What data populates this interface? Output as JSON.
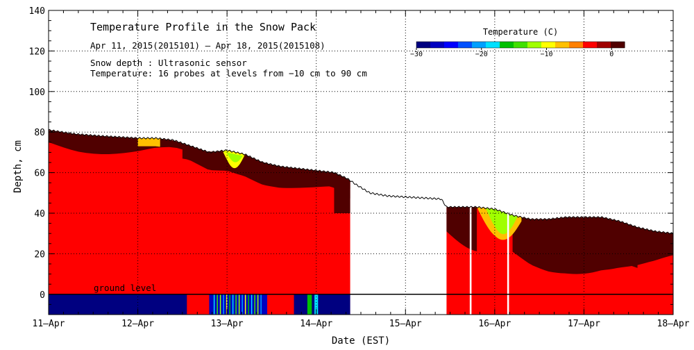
{
  "chart_data": {
    "type": "heatmap",
    "title": "Temperature Profile in the Snow Pack",
    "subtitle": "Apr 11, 2015(2015101) – Apr 18, 2015(2015108)",
    "annotations": [
      "Snow depth : Ultrasonic sensor",
      "Temperature: 16 probes at levels from −10 cm to 90 cm"
    ],
    "ground_label": "ground level",
    "xlabel": "Date (EST)",
    "ylabel": "Depth, cm",
    "x_ticks": [
      "11–Apr",
      "12–Apr",
      "13–Apr",
      "14–Apr",
      "15–Apr",
      "16–Apr",
      "17–Apr",
      "18–Apr"
    ],
    "xlim": [
      0,
      7
    ],
    "ylim": [
      -10,
      140
    ],
    "y_ticks": [
      140,
      120,
      100,
      80,
      60,
      40,
      20,
      0
    ],
    "grid": true,
    "colorbar": {
      "title": "Temperature (C)",
      "range": [
        -30,
        2
      ],
      "ticks": [
        -30,
        -20,
        -10,
        0
      ],
      "colors": [
        "#000080",
        "#0000c0",
        "#0000ff",
        "#0050ff",
        "#00a0ff",
        "#00e0ff",
        "#00c000",
        "#40e000",
        "#a0ff00",
        "#ffff00",
        "#ffc000",
        "#ff8000",
        "#ff0000",
        "#a00000",
        "#500000"
      ]
    },
    "snow_depth": {
      "x": [
        0,
        0.3,
        0.6,
        1.0,
        1.2,
        1.4,
        1.6,
        1.8,
        2.0,
        2.2,
        2.4,
        2.6,
        2.8,
        3.0,
        3.2,
        3.35,
        3.45,
        3.6,
        3.8,
        4.0,
        4.2,
        4.4,
        4.46,
        4.6,
        4.8,
        5.0,
        5.2,
        5.4,
        5.6,
        5.8,
        6.0,
        6.2,
        6.4,
        6.6,
        6.8,
        7.0
      ],
      "depth": [
        81,
        79,
        78,
        77,
        77,
        76,
        73,
        70,
        71,
        69,
        65,
        63,
        62,
        61,
        60,
        57,
        54,
        50,
        48.5,
        48,
        47.5,
        47,
        43,
        43,
        43,
        42,
        39,
        37,
        37,
        38,
        38,
        38,
        36,
        33,
        31,
        30
      ]
    },
    "temperature_regions": [
      {
        "label": "near 0 C",
        "x": [
          0,
          3.38
        ],
        "color": "#ff0000"
      },
      {
        "label": "near 0 C",
        "x": [
          4.46,
          7.0
        ],
        "color": "#ff0000"
      },
      {
        "label": "below -25 C at ground",
        "x": [
          0,
          1.55
        ],
        "color": "#000080"
      },
      {
        "label": "variable",
        "x": [
          1.8,
          2.45
        ],
        "color": "#0000c0"
      },
      {
        "label": "below -25 C at ground",
        "x": [
          2.75,
          3.38
        ],
        "color": "#000080"
      }
    ]
  }
}
